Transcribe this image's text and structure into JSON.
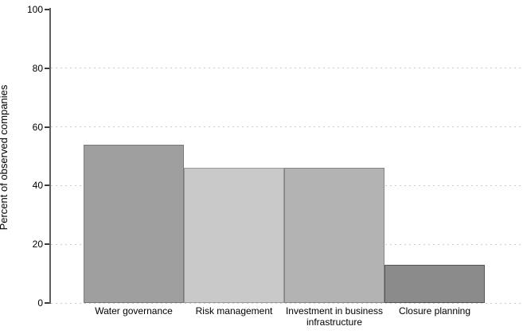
{
  "chart_data": {
    "type": "bar",
    "title": "",
    "categories": [
      "Water governance",
      "Risk management",
      "Investment in business infrastructure",
      "Closure planning"
    ],
    "values": [
      54,
      46,
      46,
      13
    ],
    "xlabel": "",
    "ylabel": "Percent of observed companies",
    "ylim": [
      0,
      100
    ],
    "yticks": [
      0,
      20,
      40,
      60,
      80,
      100
    ],
    "grid": "horizontal-dotted-at-0-20-40-60-80",
    "legend": "none",
    "bar_fill_colors": [
      "#9f9f9f",
      "#c9c9c9",
      "#b3b3b3",
      "#8b8b8b"
    ],
    "bar_border_colors": [
      "#787878",
      "#989898",
      "#858585",
      "#565656"
    ],
    "axis_color": "#606060",
    "gridline_color": "#cccccc",
    "text_color": "#000000",
    "background_color": "#ffffff"
  }
}
